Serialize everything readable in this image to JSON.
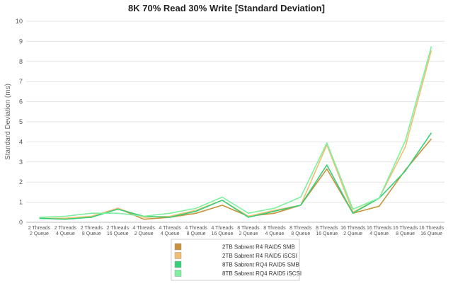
{
  "chart_data": {
    "type": "line",
    "title": "8K 70% Read 30% Write [Standard Deviation]",
    "xlabel": "",
    "ylabel": "Standard Deviation (ms)",
    "ylim": [
      0,
      10
    ],
    "yticks": [
      "0",
      "1",
      "2",
      "3",
      "4",
      "5",
      "6",
      "7",
      "8",
      "9",
      "10"
    ],
    "grid": true,
    "legend_position": "bottom",
    "categories": [
      [
        "2 Threads",
        "2 Queue"
      ],
      [
        "2 Threads",
        "4 Queue"
      ],
      [
        "2 Threads",
        "8 Queue"
      ],
      [
        "2 Threads",
        "16 Queue"
      ],
      [
        "4 Threads",
        "2 Queue"
      ],
      [
        "4 Threads",
        "4 Queue"
      ],
      [
        "4 Threads",
        "8 Queue"
      ],
      [
        "4 Threads",
        "16 Queue"
      ],
      [
        "8 Threads",
        "2 Queue"
      ],
      [
        "8 Threads",
        "4 Queue"
      ],
      [
        "8 Threads",
        "8 Queue"
      ],
      [
        "8 Threads",
        "16 Queue"
      ],
      [
        "16 Threads",
        "2 Queue"
      ],
      [
        "16 Threads",
        "4 Queue"
      ],
      [
        "16 Threads",
        "8 Queue"
      ],
      [
        "16 Threads",
        "16 Queue"
      ]
    ],
    "series": [
      {
        "name": "2TB Sabrent R4 RAID5 SMB",
        "color": "#c8923a",
        "values": [
          0.2,
          0.2,
          0.25,
          0.7,
          0.15,
          0.25,
          0.45,
          0.85,
          0.3,
          0.45,
          0.85,
          2.65,
          0.45,
          0.8,
          2.6,
          4.15
        ]
      },
      {
        "name": "2TB Sabrent R4 RAID5 iSCSI",
        "color": "#f0be70",
        "values": [
          0.2,
          0.2,
          0.3,
          0.7,
          0.25,
          0.3,
          0.6,
          1.1,
          0.3,
          0.6,
          0.85,
          3.85,
          0.5,
          1.2,
          3.75,
          8.55
        ]
      },
      {
        "name": "8TB Sabrent RQ4 RAID5 SMB",
        "color": "#35d07a",
        "values": [
          0.2,
          0.15,
          0.25,
          0.65,
          0.3,
          0.25,
          0.55,
          1.1,
          0.25,
          0.55,
          0.85,
          2.85,
          0.45,
          1.2,
          2.55,
          4.45
        ]
      },
      {
        "name": "8TB Sabrent RQ4 RAID5 iSCSI",
        "color": "#7ff09f",
        "values": [
          0.25,
          0.3,
          0.45,
          0.45,
          0.3,
          0.45,
          0.7,
          1.25,
          0.45,
          0.7,
          1.25,
          3.95,
          0.65,
          1.2,
          4.05,
          8.75
        ]
      }
    ]
  }
}
